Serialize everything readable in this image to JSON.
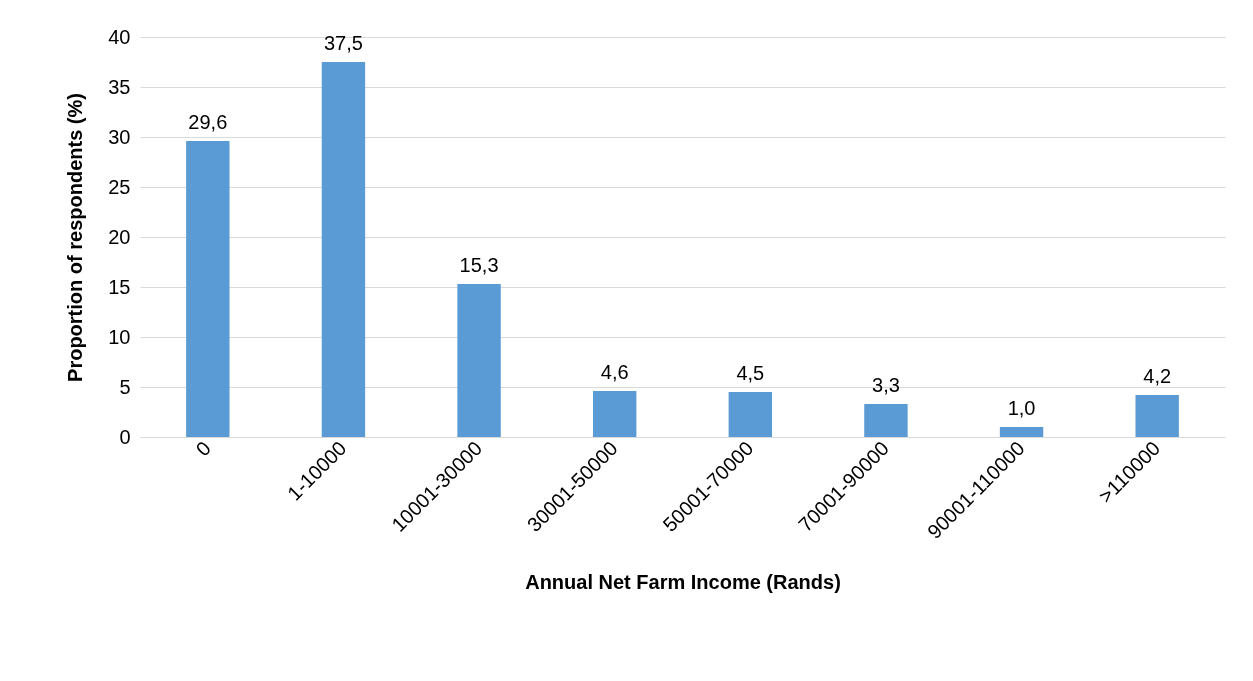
{
  "chart_data": {
    "type": "bar",
    "xlabel": "Annual Net Farm Income (Rands)",
    "ylabel": "Proportion of respondents (%)",
    "categories": [
      "0",
      "1-10000",
      "10001-30000",
      "30001-50000",
      "50001-70000",
      "70001-90000",
      "90001-110000",
      ">110000"
    ],
    "values": [
      29.6,
      37.5,
      15.3,
      4.6,
      4.5,
      3.3,
      1.0,
      4.2
    ],
    "value_labels": [
      "29,6",
      "37,5",
      "15,3",
      "4,6",
      "4,5",
      "3,3",
      "1,0",
      "4,2"
    ],
    "color": "#5b9bd5",
    "ylim": [
      0,
      40
    ],
    "yticks": [
      0,
      5,
      10,
      15,
      20,
      25,
      30,
      35,
      40
    ],
    "grid": "y"
  }
}
